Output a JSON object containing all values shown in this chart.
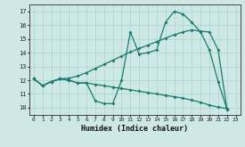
{
  "xlabel": "Humidex (Indice chaleur)",
  "background_color": "#cde8e5",
  "grid_color": "#b0d8d4",
  "line_color": "#1a7a6e",
  "xlim": [
    -0.5,
    23.5
  ],
  "ylim": [
    9.5,
    17.5
  ],
  "yticks": [
    10,
    11,
    12,
    13,
    14,
    15,
    16,
    17
  ],
  "xticks": [
    0,
    1,
    2,
    3,
    4,
    5,
    6,
    7,
    8,
    9,
    10,
    11,
    12,
    13,
    14,
    15,
    16,
    17,
    18,
    19,
    20,
    21,
    22,
    23
  ],
  "line1_x": [
    0,
    1,
    2,
    3,
    4,
    5,
    6,
    7,
    8,
    9,
    10,
    11,
    12,
    13,
    14,
    15,
    16,
    17,
    18,
    19,
    20,
    21,
    22
  ],
  "line1_y": [
    12.1,
    11.6,
    11.9,
    12.1,
    12.0,
    11.8,
    11.8,
    10.5,
    10.3,
    10.3,
    12.0,
    15.5,
    13.9,
    14.0,
    14.2,
    16.2,
    17.0,
    16.8,
    16.2,
    15.5,
    14.2,
    11.9,
    9.9
  ],
  "line2_x": [
    0,
    1,
    2,
    3,
    4,
    5,
    6,
    7,
    8,
    9,
    10,
    11,
    12,
    13,
    14,
    15,
    16,
    17,
    18,
    19,
    20,
    21,
    22
  ],
  "line2_y": [
    12.1,
    11.6,
    11.9,
    12.1,
    12.0,
    11.8,
    11.8,
    11.7,
    11.6,
    11.5,
    11.4,
    11.3,
    11.2,
    11.1,
    11.0,
    10.9,
    10.8,
    10.7,
    10.55,
    10.4,
    10.2,
    10.05,
    9.95
  ],
  "line3_x": [
    0,
    1,
    2,
    3,
    4,
    5,
    6,
    7,
    8,
    9,
    10,
    11,
    12,
    13,
    14,
    15,
    16,
    17,
    18,
    19,
    20,
    21,
    22
  ],
  "line3_y": [
    12.1,
    11.6,
    11.9,
    12.1,
    12.15,
    12.3,
    12.55,
    12.85,
    13.15,
    13.45,
    13.75,
    14.05,
    14.3,
    14.55,
    14.8,
    15.05,
    15.3,
    15.5,
    15.65,
    15.55,
    15.5,
    14.2,
    9.9
  ]
}
